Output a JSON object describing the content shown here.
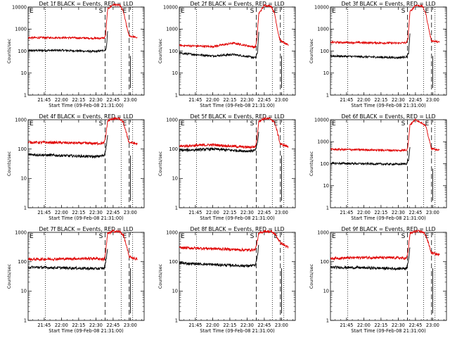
{
  "colors": {
    "events": "#000000",
    "lld": "#e00000",
    "background": "#ffffff"
  },
  "chart_data": [
    {
      "type": "line",
      "title": "Det 1f BLACK = Events, RED = LLD",
      "xlabel": "Start Time (09-Feb-08 21:31:00)",
      "ylabel": "Counts/sec",
      "xlim": [
        "21:31",
        "23:12"
      ],
      "x_ticks": [
        "21:45",
        "22:00",
        "22:15",
        "22:30",
        "22:45",
        "23:00"
      ],
      "yscale": "log",
      "ylim": [
        1,
        10000
      ],
      "y_ticks": [
        "1",
        "10",
        "100",
        "1000",
        "10000"
      ],
      "interval_marks": [
        "S",
        "E"
      ],
      "dotted_lines": [
        "21:46",
        "22:52",
        "23:02"
      ],
      "dashed_lines": [
        "22:38",
        "22:59"
      ],
      "grid": false,
      "series": [
        {
          "values": [
            [
              21.52,
              105
            ],
            [
              22.0,
              108
            ],
            [
              22.5,
              95
            ],
            [
              22.62,
              108
            ],
            [
              22.65,
              120
            ],
            [
              22.67,
              800
            ]
          ]
        },
        {
          "values": [
            [
              21.52,
              400
            ],
            [
              22.0,
              410
            ],
            [
              22.5,
              380
            ],
            [
              22.62,
              390
            ],
            [
              22.64,
              500
            ],
            [
              22.67,
              8000
            ],
            [
              22.75,
              13000
            ],
            [
              22.85,
              12000
            ],
            [
              22.9,
              6000
            ],
            [
              22.95,
              1200
            ],
            [
              22.98,
              500
            ],
            [
              23.1,
              400
            ]
          ]
        }
      ]
    },
    {
      "type": "line",
      "title": "Det 2f BLACK = Events, RED = LLD",
      "xlabel": "Start Time (09-Feb-08 21:31:00)",
      "ylabel": "Counts/sec",
      "xlim": [
        "21:31",
        "23:12"
      ],
      "x_ticks": [
        "21:45",
        "22:00",
        "22:15",
        "22:30",
        "22:45",
        "23:00"
      ],
      "yscale": "log",
      "ylim": [
        1,
        10000
      ],
      "y_ticks": [
        "1",
        "10",
        "100",
        "1000",
        "10000"
      ],
      "interval_marks": [
        "S",
        "E"
      ],
      "dotted_lines": [
        "21:46",
        "22:52",
        "23:02"
      ],
      "dashed_lines": [
        "22:38",
        "22:59"
      ],
      "grid": false,
      "series": [
        {
          "values": [
            [
              21.52,
              80
            ],
            [
              22.0,
              60
            ],
            [
              22.3,
              70
            ],
            [
              22.62,
              50
            ],
            [
              22.65,
              80
            ],
            [
              22.67,
              700
            ]
          ]
        },
        {
          "values": [
            [
              21.52,
              180
            ],
            [
              22.0,
              160
            ],
            [
              22.3,
              230
            ],
            [
              22.62,
              150
            ],
            [
              22.64,
              300
            ],
            [
              22.67,
              5000
            ],
            [
              22.75,
              12000
            ],
            [
              22.85,
              11000
            ],
            [
              22.9,
              5000
            ],
            [
              22.95,
              700
            ],
            [
              22.98,
              300
            ],
            [
              23.1,
              180
            ]
          ]
        }
      ]
    },
    {
      "type": "line",
      "title": "Det 3f BLACK = Events, RED = LLD",
      "xlabel": "Start Time (09-Feb-08 21:31:00)",
      "ylabel": "Counts/sec",
      "xlim": [
        "21:31",
        "23:12"
      ],
      "x_ticks": [
        "21:45",
        "22:00",
        "22:15",
        "22:30",
        "22:45",
        "23:00"
      ],
      "yscale": "log",
      "ylim": [
        1,
        10000
      ],
      "y_ticks": [
        "1",
        "10",
        "100",
        "1000",
        "10000"
      ],
      "interval_marks": [
        "S",
        "E"
      ],
      "dotted_lines": [
        "21:46",
        "22:52",
        "23:02"
      ],
      "dashed_lines": [
        "22:38",
        "22:59"
      ],
      "grid": false,
      "series": [
        {
          "values": [
            [
              21.52,
              60
            ],
            [
              22.0,
              55
            ],
            [
              22.5,
              50
            ],
            [
              22.62,
              55
            ],
            [
              22.65,
              80
            ],
            [
              22.67,
              600
            ]
          ]
        },
        {
          "values": [
            [
              21.52,
              250
            ],
            [
              22.0,
              240
            ],
            [
              22.5,
              230
            ],
            [
              22.62,
              240
            ],
            [
              22.64,
              350
            ],
            [
              22.67,
              6000
            ],
            [
              22.75,
              12000
            ],
            [
              22.85,
              11000
            ],
            [
              22.9,
              5000
            ],
            [
              22.95,
              800
            ],
            [
              22.98,
              300
            ],
            [
              23.1,
              250
            ]
          ]
        }
      ]
    },
    {
      "type": "line",
      "title": "Det 4f BLACK = Events, RED = LLD",
      "xlabel": "Start Time (09-Feb-08 21:31:00)",
      "ylabel": "Counts/sec",
      "xlim": [
        "21:31",
        "23:12"
      ],
      "x_ticks": [
        "21:45",
        "22:00",
        "22:15",
        "22:30",
        "22:45",
        "23:00"
      ],
      "yscale": "log",
      "ylim": [
        1,
        1000
      ],
      "y_ticks": [
        "1",
        "10",
        "100",
        "1000"
      ],
      "interval_marks": [
        "S",
        "E"
      ],
      "dotted_lines": [
        "21:46",
        "22:52",
        "23:02"
      ],
      "dashed_lines": [
        "22:38",
        "22:59"
      ],
      "grid": false,
      "series": [
        {
          "values": [
            [
              21.52,
              65
            ],
            [
              22.0,
              60
            ],
            [
              22.5,
              55
            ],
            [
              22.62,
              60
            ],
            [
              22.65,
              120
            ],
            [
              22.67,
              300
            ]
          ]
        },
        {
          "values": [
            [
              21.52,
              170
            ],
            [
              22.0,
              165
            ],
            [
              22.5,
              155
            ],
            [
              22.62,
              160
            ],
            [
              22.64,
              250
            ],
            [
              22.67,
              900
            ],
            [
              22.75,
              1100
            ],
            [
              22.85,
              1050
            ],
            [
              22.9,
              800
            ],
            [
              22.95,
              300
            ],
            [
              22.98,
              170
            ],
            [
              23.1,
              150
            ]
          ]
        }
      ]
    },
    {
      "type": "line",
      "title": "Det 5f BLACK = Events, RED = LLD",
      "xlabel": "Start Time (09-Feb-08 21:31:00)",
      "ylabel": "Counts/sec",
      "xlim": [
        "21:31",
        "23:12"
      ],
      "x_ticks": [
        "21:45",
        "22:00",
        "22:15",
        "22:30",
        "22:45",
        "23:00"
      ],
      "yscale": "log",
      "ylim": [
        1,
        1000
      ],
      "y_ticks": [
        "1",
        "10",
        "100",
        "1000"
      ],
      "interval_marks": [
        "S",
        "E"
      ],
      "dotted_lines": [
        "21:46",
        "22:52",
        "23:02"
      ],
      "dashed_lines": [
        "22:38",
        "22:59"
      ],
      "grid": false,
      "series": [
        {
          "values": [
            [
              21.52,
              90
            ],
            [
              22.0,
              100
            ],
            [
              22.5,
              85
            ],
            [
              22.62,
              90
            ],
            [
              22.65,
              150
            ],
            [
              22.67,
              400
            ]
          ]
        },
        {
          "values": [
            [
              21.52,
              125
            ],
            [
              22.0,
              140
            ],
            [
              22.5,
              115
            ],
            [
              22.62,
              120
            ],
            [
              22.64,
              200
            ],
            [
              22.67,
              900
            ],
            [
              22.75,
              1100
            ],
            [
              22.85,
              1050
            ],
            [
              22.9,
              800
            ],
            [
              22.95,
              300
            ],
            [
              22.98,
              150
            ],
            [
              23.1,
              120
            ]
          ]
        }
      ]
    },
    {
      "type": "line",
      "title": "Det 6f BLACK = Events, RED = LLD",
      "xlabel": "Start Time (09-Feb-08 21:31:00)",
      "ylabel": "Counts/sec",
      "xlim": [
        "21:31",
        "23:12"
      ],
      "x_ticks": [
        "21:45",
        "22:00",
        "22:15",
        "22:30",
        "22:45",
        "23:00"
      ],
      "yscale": "log",
      "ylim": [
        1,
        10000
      ],
      "y_ticks": [
        "1",
        "10",
        "100",
        "1000",
        "10000"
      ],
      "interval_marks": [
        "S",
        "E"
      ],
      "dotted_lines": [
        "21:46",
        "22:52",
        "23:02"
      ],
      "dashed_lines": [
        "22:38",
        "22:59"
      ],
      "grid": false,
      "series": [
        {
          "values": [
            [
              21.52,
              105
            ],
            [
              22.0,
              100
            ],
            [
              22.5,
              95
            ],
            [
              22.62,
              100
            ],
            [
              22.65,
              150
            ],
            [
              22.67,
              600
            ]
          ]
        },
        {
          "values": [
            [
              21.52,
              450
            ],
            [
              22.0,
              430
            ],
            [
              22.5,
              400
            ],
            [
              22.62,
              420
            ],
            [
              22.64,
              600
            ],
            [
              22.67,
              6000
            ],
            [
              22.75,
              10000
            ],
            [
              22.85,
              7000
            ],
            [
              22.9,
              5000
            ],
            [
              22.95,
              1200
            ],
            [
              22.98,
              500
            ],
            [
              23.1,
              400
            ]
          ]
        }
      ]
    },
    {
      "type": "line",
      "title": "Det 7f BLACK = Events, RED = LLD",
      "xlabel": "Start Time (09-Feb-08 21:31:00)",
      "ylabel": "Counts/sec",
      "xlim": [
        "21:31",
        "23:12"
      ],
      "x_ticks": [
        "21:45",
        "22:00",
        "22:15",
        "22:30",
        "22:45",
        "23:00"
      ],
      "yscale": "log",
      "ylim": [
        1,
        1000
      ],
      "y_ticks": [
        "1",
        "10",
        "100",
        "1000"
      ],
      "interval_marks": [
        "S",
        "E"
      ],
      "dotted_lines": [
        "21:46",
        "22:52",
        "23:02"
      ],
      "dashed_lines": [
        "22:38",
        "22:59"
      ],
      "grid": false,
      "series": [
        {
          "values": [
            [
              21.52,
              65
            ],
            [
              22.0,
              62
            ],
            [
              22.5,
              58
            ],
            [
              22.62,
              60
            ],
            [
              22.65,
              120
            ],
            [
              22.67,
              300
            ]
          ]
        },
        {
          "values": [
            [
              21.52,
              120
            ],
            [
              22.0,
              125
            ],
            [
              22.5,
              130
            ],
            [
              22.62,
              120
            ],
            [
              22.64,
              200
            ],
            [
              22.67,
              900
            ],
            [
              22.75,
              1100
            ],
            [
              22.85,
              1050
            ],
            [
              22.9,
              800
            ],
            [
              22.95,
              300
            ],
            [
              22.98,
              150
            ],
            [
              23.1,
              120
            ]
          ]
        }
      ]
    },
    {
      "type": "line",
      "title": "Det 8f BLACK = Events, RED = LLD",
      "xlabel": "Start Time (09-Feb-08 21:31:00)",
      "ylabel": "Counts/sec",
      "xlim": [
        "21:31",
        "23:12"
      ],
      "x_ticks": [
        "21:45",
        "22:00",
        "22:15",
        "22:30",
        "22:45",
        "23:00"
      ],
      "yscale": "log",
      "ylim": [
        1,
        1000
      ],
      "y_ticks": [
        "1",
        "10",
        "100",
        "1000"
      ],
      "interval_marks": [
        "S",
        "E"
      ],
      "dotted_lines": [
        "21:46",
        "22:52",
        "23:02"
      ],
      "dashed_lines": [
        "22:38",
        "22:59"
      ],
      "grid": false,
      "series": [
        {
          "values": [
            [
              21.52,
              90
            ],
            [
              22.0,
              80
            ],
            [
              22.5,
              72
            ],
            [
              22.62,
              75
            ],
            [
              22.65,
              150
            ],
            [
              22.67,
              400
            ]
          ]
        },
        {
          "values": [
            [
              21.52,
              300
            ],
            [
              22.0,
              280
            ],
            [
              22.5,
              250
            ],
            [
              22.62,
              260
            ],
            [
              22.64,
              400
            ],
            [
              22.67,
              900
            ],
            [
              22.75,
              1100
            ],
            [
              22.85,
              1050
            ],
            [
              22.9,
              900
            ],
            [
              22.95,
              600
            ],
            [
              22.98,
              450
            ],
            [
              23.1,
              300
            ]
          ]
        }
      ]
    },
    {
      "type": "line",
      "title": "Det 9f BLACK = Events, RED = LLD",
      "xlabel": "Start Time (09-Feb-08 21:31:00)",
      "ylabel": "Counts/sec",
      "xlim": [
        "21:31",
        "23:12"
      ],
      "x_ticks": [
        "21:45",
        "22:00",
        "22:15",
        "22:30",
        "22:45",
        "23:00"
      ],
      "yscale": "log",
      "ylim": [
        1,
        1000
      ],
      "y_ticks": [
        "1",
        "10",
        "100",
        "1000"
      ],
      "interval_marks": [
        "S",
        "E"
      ],
      "dotted_lines": [
        "21:46",
        "22:52",
        "23:02"
      ],
      "dashed_lines": [
        "22:38",
        "22:59"
      ],
      "grid": false,
      "series": [
        {
          "values": [
            [
              21.52,
              65
            ],
            [
              22.0,
              62
            ],
            [
              22.5,
              58
            ],
            [
              22.62,
              60
            ],
            [
              22.65,
              120
            ],
            [
              22.67,
              300
            ]
          ]
        },
        {
          "values": [
            [
              21.52,
              130
            ],
            [
              22.0,
              140
            ],
            [
              22.5,
              135
            ],
            [
              22.62,
              130
            ],
            [
              22.64,
              200
            ],
            [
              22.67,
              900
            ],
            [
              22.75,
              1100
            ],
            [
              22.85,
              1050
            ],
            [
              22.9,
              800
            ],
            [
              22.95,
              350
            ],
            [
              22.98,
              200
            ],
            [
              23.1,
              170
            ]
          ]
        }
      ]
    }
  ]
}
